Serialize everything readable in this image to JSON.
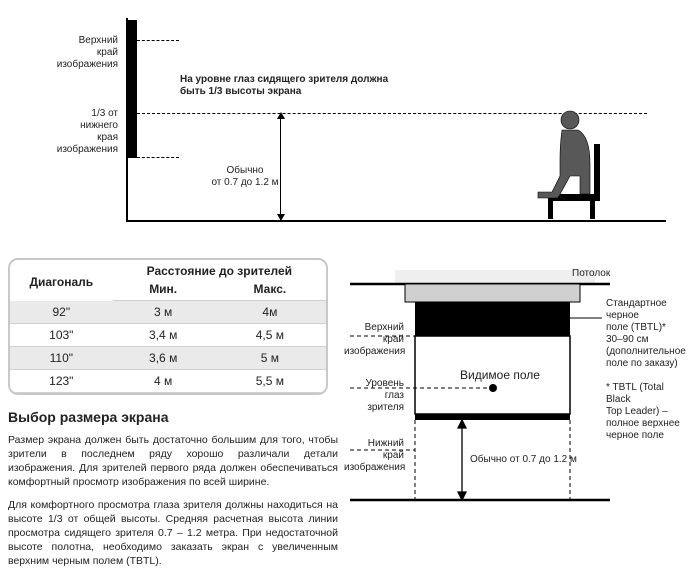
{
  "topDiagram": {
    "labels": {
      "upperEdge": "Верхний\nкрай\nизображения",
      "thirdFromBottom": "1/3 от\nнижнего\nкрая\nизображения",
      "eyeLevelNote": "На уровне глаз сидящего зрителя должна\nбыть 1/3 высоты экрана",
      "usualHeight": "Обычно\nот 0.7 до 1.2 м"
    },
    "lineColor": "#000000",
    "screenBarColor": "#000000"
  },
  "table": {
    "headers": {
      "diagonal": "Диагональ",
      "distanceGroup": "Расстояние до зрителей",
      "min": "Мин.",
      "max": "Макс."
    },
    "rows": [
      {
        "diag": "92\"",
        "min": "3 м",
        "max": "4м"
      },
      {
        "diag": "103\"",
        "min": "3,4 м",
        "max": "4,5 м"
      },
      {
        "diag": "110\"",
        "min": "3,6 м",
        "max": "5 м"
      },
      {
        "diag": "123\"",
        "min": "4 м",
        "max": "5,5 м"
      }
    ],
    "borderColor": "#c8c8c8",
    "stripeColor": "#eaeaea"
  },
  "text": {
    "heading": "Выбор размера экрана",
    "p1": "Размер экрана должен быть достаточно большим для того, чтобы зрители в последнем ряду хорошо различали детали изображения. Для зрителей первого ряда должен обеспечиваться комфортный просмотр изображения по всей ширине.",
    "p2": "Для комфортного просмотра глаза зрителя должны находиться на высоте 1/3 от общей высоты. Средняя расчетная высота линии просмотра сидящего зрителя 0.7 – 1.2 метра. При недостаточной высоте полотна, необходимо заказать экран с увеличенным верхним черным полем (TBTL)."
  },
  "bottomDiagram": {
    "labels": {
      "ceiling": "Потолок",
      "upperEdge": "Верхний\nкрай\nизображения",
      "eyeLevel": "Уровень глаз\nзрителя",
      "lowerEdge": "Нижний\nкрай\nизображения",
      "visibleField": "Видимое поле",
      "tbtlStd": "Стандартное черное\nполе (TBTL)*\n30–90 см\n(дополнительное\nполе по заказу)",
      "tbtlNote": "* TBTL (Total Black\nTop Leader) –\nполное верхнее\nчерное поле",
      "usualHeight": "Обычно от 0.7 до 1.2 м"
    },
    "colors": {
      "ceiling": "#efefef",
      "case": "#d0d0d0",
      "black": "#000000",
      "line": "#000000"
    }
  }
}
